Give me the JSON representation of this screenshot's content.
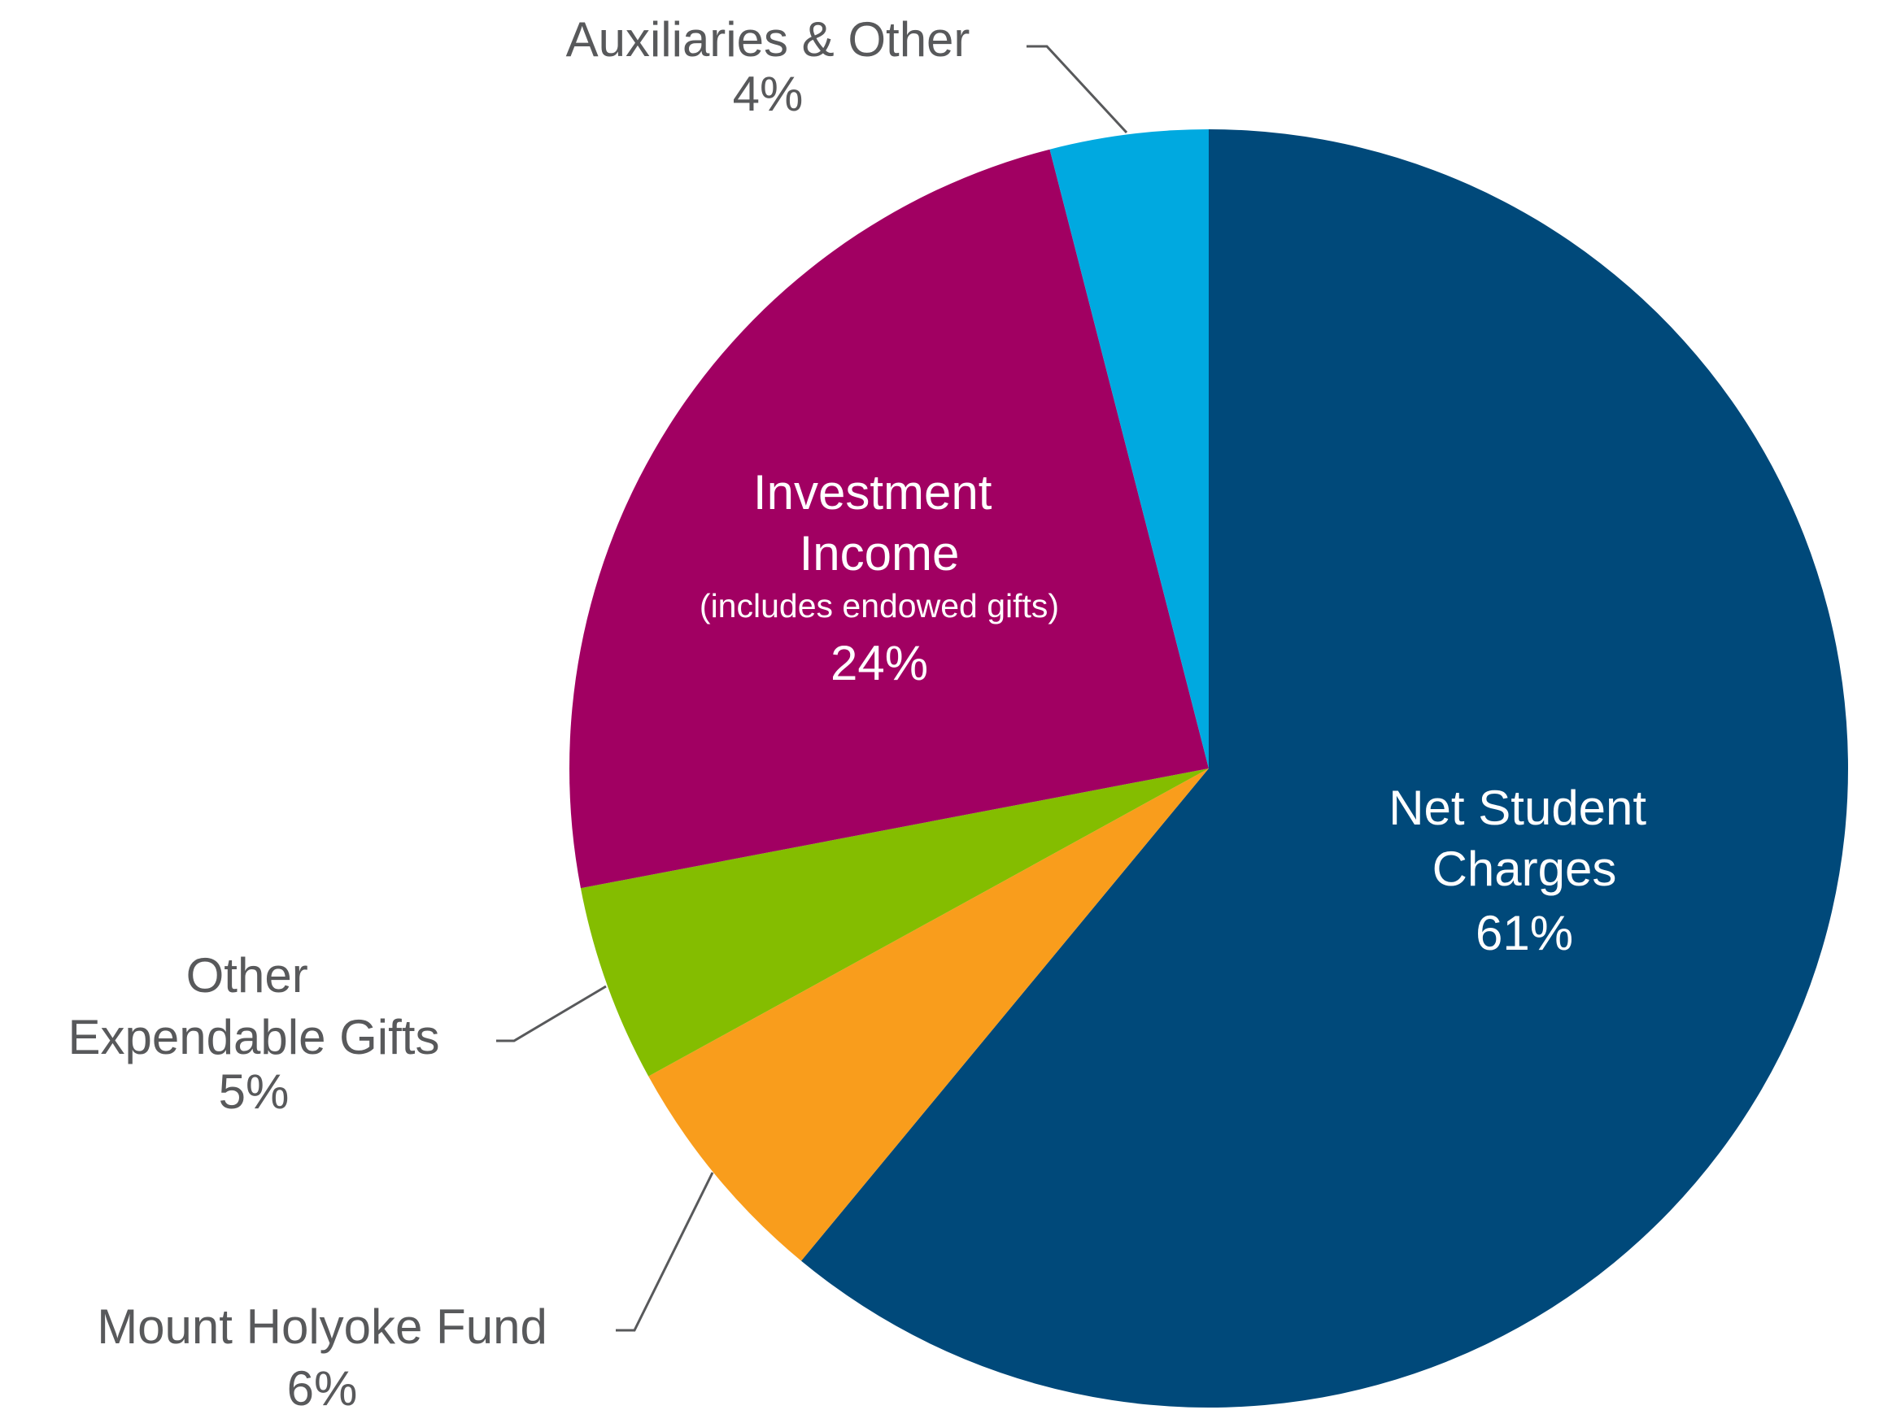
{
  "chart_data": {
    "type": "pie",
    "categories": [
      "Net Student Charges",
      "Mount Holyoke Fund",
      "Other Expendable Gifts",
      "Investment Income",
      "Auxiliaries & Other"
    ],
    "values": [
      61,
      6,
      5,
      24,
      4
    ],
    "value_labels": [
      "61%",
      "6%",
      "5%",
      "24%",
      "4%"
    ],
    "colors": [
      "#00497a",
      "#f99d1c",
      "#84bd00",
      "#a10062",
      "#00a9e0"
    ],
    "annotation": "(includes endowed gifts)"
  }
}
